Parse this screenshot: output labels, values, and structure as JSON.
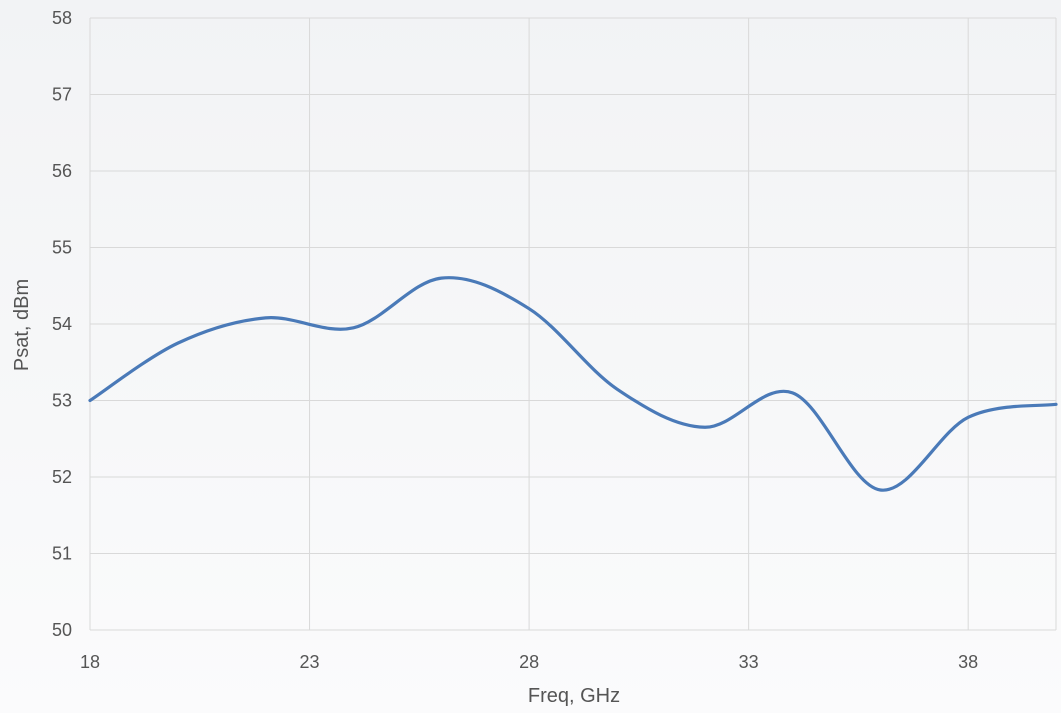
{
  "chart_data": {
    "type": "line",
    "xlabel": "Freq, GHz",
    "ylabel": "Psat, dBm",
    "xlim": [
      18,
      40
    ],
    "ylim": [
      50,
      58
    ],
    "x_ticks": [
      "18",
      "23",
      "28",
      "33",
      "38"
    ],
    "y_ticks": [
      "50",
      "51",
      "52",
      "53",
      "54",
      "55",
      "56",
      "57",
      "58"
    ],
    "grid": true,
    "legend": "none",
    "series": [
      {
        "color": "#4a7ab8",
        "x": [
          18,
          20,
          22,
          24,
          26,
          28,
          30,
          32,
          34,
          36,
          38,
          40
        ],
        "y": [
          53.0,
          53.75,
          54.08,
          53.95,
          54.6,
          54.2,
          53.15,
          52.65,
          53.1,
          51.83,
          52.78,
          52.95
        ]
      }
    ]
  }
}
